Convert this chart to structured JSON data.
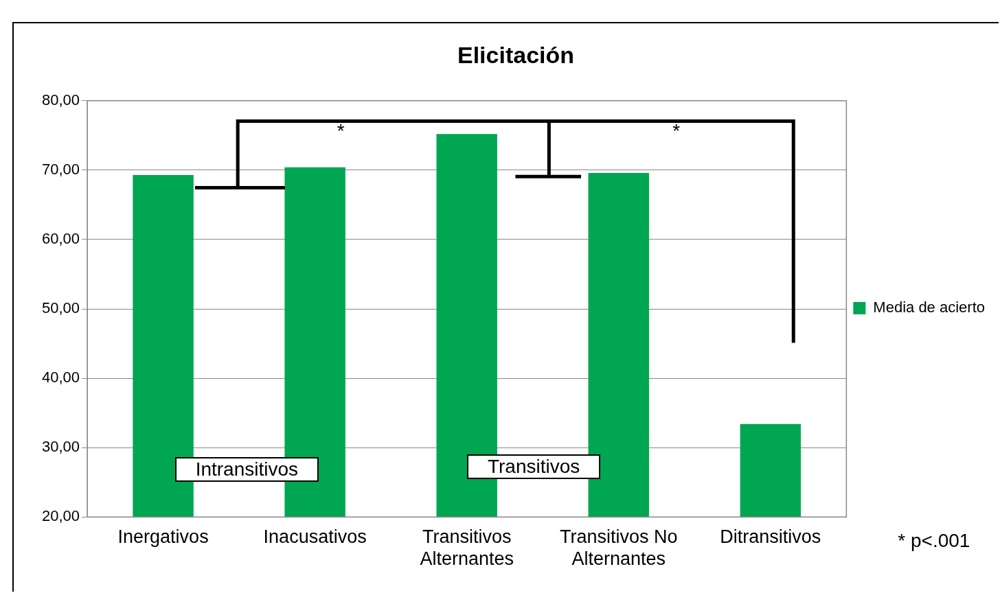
{
  "chart_data": {
    "type": "bar",
    "title": "Elicitación",
    "categories": [
      "Inergativos",
      "Inacusativos",
      "Transitivos Alternantes",
      "Transitivos No Alternantes",
      "Ditransitivos"
    ],
    "series": [
      {
        "name": "Media de acierto",
        "color": "#00a651",
        "values": [
          69.3,
          70.4,
          75.2,
          69.6,
          33.4
        ]
      }
    ],
    "ylim": [
      20,
      80
    ],
    "yticks": [
      {
        "value": 20,
        "label": "20,00"
      },
      {
        "value": 30,
        "label": "30,00"
      },
      {
        "value": 40,
        "label": "40,00"
      },
      {
        "value": 50,
        "label": "50,00"
      },
      {
        "value": 60,
        "label": "60,00"
      },
      {
        "value": 70,
        "label": "70,00"
      },
      {
        "value": 80,
        "label": "80,00"
      }
    ],
    "grid": "y",
    "legend": "right",
    "annotations": [
      "*",
      "*",
      "Intransitivos",
      "Transitivos",
      "* p<.001"
    ]
  }
}
